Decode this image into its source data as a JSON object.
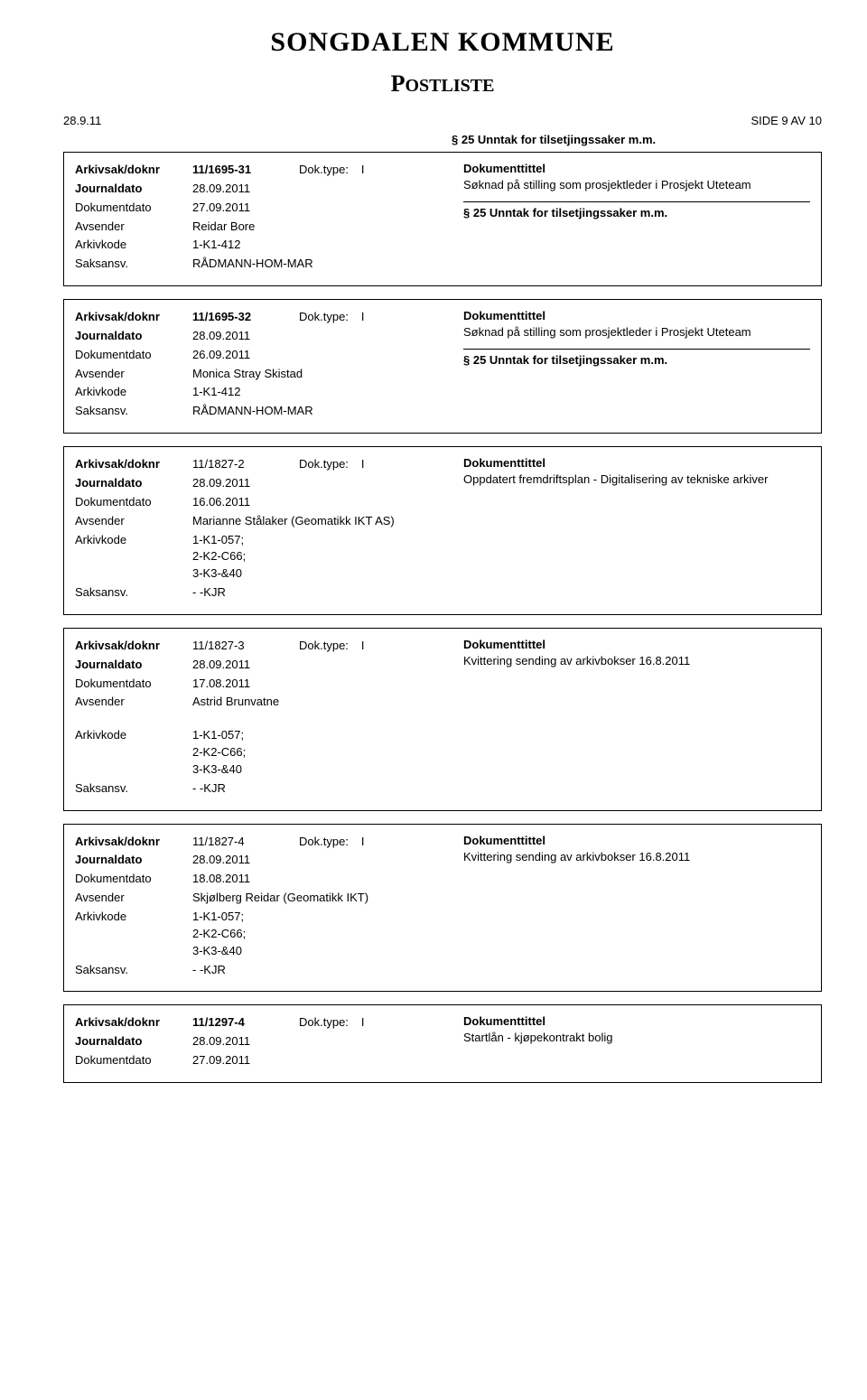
{
  "header": {
    "title": "SONGDALEN KOMMUNE",
    "subtitle_big": "P",
    "subtitle_rest": "OSTLISTE"
  },
  "meta": {
    "left": "28.9.11",
    "right": "SIDE 9 AV 10"
  },
  "pre_exception": "§ 25 Unntak for tilsetjingssaker m.m.",
  "common": {
    "arkivsak_label": "Arkivsak/doknr",
    "journaldato_label": "Journaldato",
    "dokumentdato_label": "Dokumentdato",
    "avsender_label": "Avsender",
    "arkivkode_label": "Arkivkode",
    "saksansv_label": "Saksansv.",
    "doktype_label": "Dok.type:",
    "dokumenttittel_label": "Dokumenttittel",
    "exception_text": "§ 25 Unntak for tilsetjingssaker m.m."
  },
  "records": [
    {
      "doknr": "11/1695-31",
      "doknr_bold": true,
      "doktype": "I",
      "journaldato": "28.09.2011",
      "dokumentdato": "27.09.2011",
      "avsender": "Reidar Bore",
      "arkivkode": "1-K1-412",
      "saksansv": "RÅDMANN-HOM-MAR",
      "tittel": "Søknad på stilling som prosjektleder i Prosjekt Uteteam",
      "show_exception": true
    },
    {
      "doknr": "11/1695-32",
      "doknr_bold": true,
      "doktype": "I",
      "journaldato": "28.09.2011",
      "dokumentdato": "26.09.2011",
      "avsender": "Monica Stray Skistad",
      "arkivkode": "1-K1-412",
      "saksansv": "RÅDMANN-HOM-MAR",
      "tittel": "Søknad på stilling som prosjektleder i Prosjekt Uteteam",
      "show_exception": true
    },
    {
      "doknr": "11/1827-2",
      "doknr_bold": false,
      "doktype": "I",
      "journaldato": "28.09.2011",
      "dokumentdato": "16.06.2011",
      "avsender": "Marianne Stålaker (Geomatikk IKT AS)",
      "arkivkode": "1-K1-057; 2-K2-C66; 3-K3-&40",
      "saksansv": "- -KJR",
      "tittel": "Oppdatert fremdriftsplan - Digitalisering av tekniske arkiver",
      "show_exception": false
    },
    {
      "doknr": "11/1827-3",
      "doknr_bold": false,
      "doktype": "I",
      "journaldato": "28.09.2011",
      "dokumentdato": "17.08.2011",
      "avsender": "Astrid Brunvatne",
      "arkivkode": "1-K1-057; 2-K2-C66; 3-K3-&40",
      "saksansv": "- -KJR",
      "tittel": "Kvittering sending av arkivbokser 16.8.2011",
      "show_exception": false,
      "arkivkode_gap": true
    },
    {
      "doknr": "11/1827-4",
      "doknr_bold": false,
      "doktype": "I",
      "journaldato": "28.09.2011",
      "dokumentdato": "18.08.2011",
      "avsender": "Skjølberg Reidar (Geomatikk IKT)",
      "arkivkode": "1-K1-057; 2-K2-C66; 3-K3-&40",
      "saksansv": "- -KJR",
      "tittel": "Kvittering sending av arkivbokser 16.8.2011",
      "show_exception": false
    },
    {
      "doknr": "11/1297-4",
      "doknr_bold": true,
      "doktype": "I",
      "journaldato": "28.09.2011",
      "dokumentdato": "27.09.2011",
      "avsender": "",
      "arkivkode": "",
      "saksansv": "",
      "tittel": "Startlån - kjøpekontrakt bolig",
      "show_exception": false,
      "partial": true
    }
  ]
}
